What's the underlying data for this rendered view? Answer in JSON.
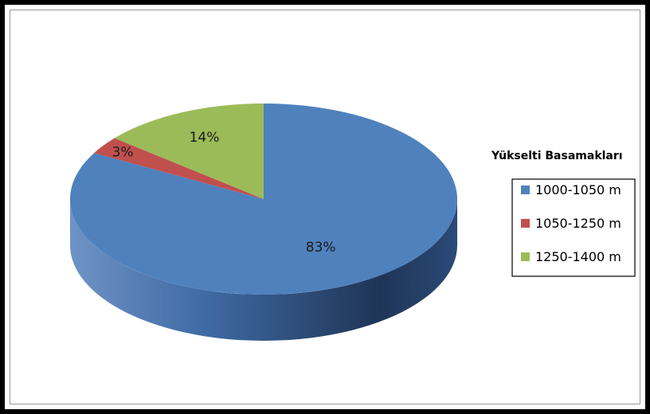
{
  "chart_data": {
    "type": "pie",
    "title": "",
    "categories": [
      "1000-1050 m",
      "1050-1250 m",
      "1250-1400 m"
    ],
    "values": [
      83,
      3,
      14
    ],
    "data_labels": [
      "83%",
      "3%",
      "14%"
    ],
    "colors": [
      "#4f81bd",
      "#c0504d",
      "#9bbb59"
    ],
    "legend": {
      "title": "Yükselti Basamakları",
      "placement": "right"
    }
  }
}
